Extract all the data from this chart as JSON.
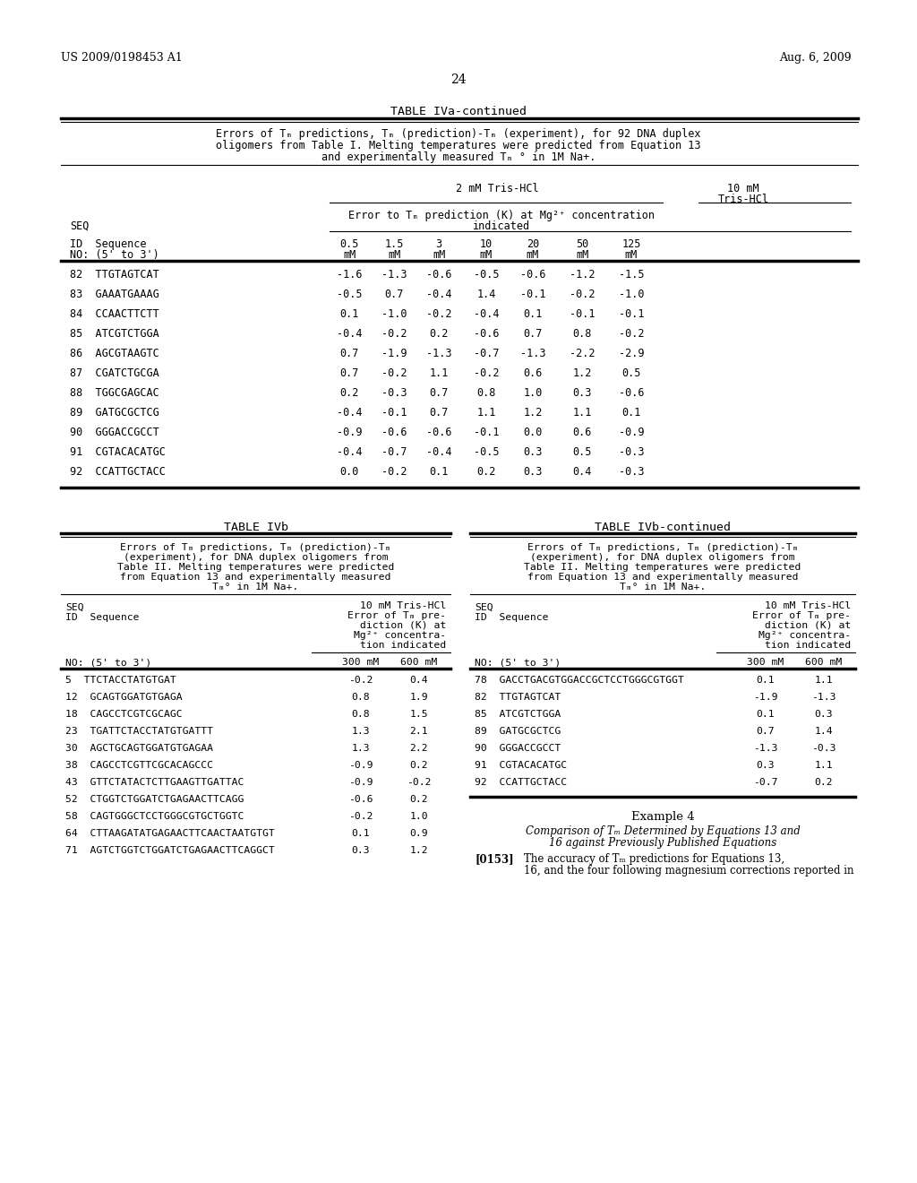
{
  "page_header_left": "US 2009/0198453 A1",
  "page_header_right": "Aug. 6, 2009",
  "page_number": "24",
  "background_color": "#ffffff",
  "table_iva_continued": {
    "title": "TABLE IVa-continued",
    "description_lines": [
      "Errors of Tₘ predictions, Tₘ (prediction)-Tₘ (experiment), for 92 DNA duplex",
      "oligomers from Table I. Melting temperatures were predicted from Equation 13",
      "and experimentally measured Tₘ ° in 1M Na+."
    ],
    "col_header_1": "2 mM Tris-HCl",
    "col_header_2_line1": "10 mM",
    "col_header_2_line2": "Tris-HCl",
    "col_subheader_line1": "Error to Tₘ prediction (K) at Mg²⁺ concentration",
    "col_subheader_line2": "indicated",
    "seq_label": "SEQ",
    "id_label": "ID  Sequence",
    "no_label": "NO: (5' to 3')",
    "col_values_line1": [
      "0.5",
      "1.5",
      "3",
      "10",
      "20",
      "50",
      "125"
    ],
    "col_values_line2": [
      "mM",
      "mM",
      "mM",
      "mM",
      "mM",
      "mM",
      "mM"
    ],
    "rows": [
      [
        "82",
        "TTGTAGTCAT",
        "-1.6",
        "-1.3",
        "-0.6",
        "-0.5",
        "-0.6",
        "-1.2",
        "-1.5"
      ],
      [
        "83",
        "GAAATGAAAG",
        "-0.5",
        "0.7",
        "-0.4",
        "1.4",
        "-0.1",
        "-0.2",
        "-1.0"
      ],
      [
        "84",
        "CCAACTTCTT",
        "0.1",
        "-1.0",
        "-0.2",
        "-0.4",
        "0.1",
        "-0.1",
        "-0.1"
      ],
      [
        "85",
        "ATCGTCTGGA",
        "-0.4",
        "-0.2",
        "0.2",
        "-0.6",
        "0.7",
        "0.8",
        "-0.2"
      ],
      [
        "86",
        "AGCGTAAGTC",
        "0.7",
        "-1.9",
        "-1.3",
        "-0.7",
        "-1.3",
        "-2.2",
        "-2.9"
      ],
      [
        "87",
        "CGATCTGCGA",
        "0.7",
        "-0.2",
        "1.1",
        "-0.2",
        "0.6",
        "1.2",
        "0.5"
      ],
      [
        "88",
        "TGGCGAGCAC",
        "0.2",
        "-0.3",
        "0.7",
        "0.8",
        "1.0",
        "0.3",
        "-0.6"
      ],
      [
        "89",
        "GATGCGCTCG",
        "-0.4",
        "-0.1",
        "0.7",
        "1.1",
        "1.2",
        "1.1",
        "0.1"
      ],
      [
        "90",
        "GGGACCGCCT",
        "-0.9",
        "-0.6",
        "-0.6",
        "-0.1",
        "0.0",
        "0.6",
        "-0.9"
      ],
      [
        "91",
        "CGTACACATGC",
        "-0.4",
        "-0.7",
        "-0.4",
        "-0.5",
        "0.3",
        "0.5",
        "-0.3"
      ],
      [
        "92",
        "CCATTGCTACC",
        "0.0",
        "-0.2",
        "0.1",
        "0.2",
        "0.3",
        "0.4",
        "-0.3"
      ]
    ]
  },
  "table_ivb": {
    "title": "TABLE IVb",
    "description_lines": [
      "Errors of Tₘ predictions, Tₘ (prediction)-Tₘ",
      "(experiment), for DNA duplex oligomers from",
      "Table II. Melting temperatures were predicted",
      "from Equation 13 and experimentally measured",
      "Tₘ° in 1M Na+."
    ],
    "col_header_lines": [
      "10 mM Tris-HCl",
      "Error of Tₘ pre-",
      "diction (K) at",
      "Mg²⁺ concentra-",
      "tion indicated"
    ],
    "seq_label": "SEQ",
    "id_label": "ID  Sequence",
    "no_label": "NO: (5' to 3')",
    "col_values": [
      "300 mM",
      "600 mM"
    ],
    "rows": [
      [
        "5",
        "TTCTACCTATGTGAT",
        "-0.2",
        "0.4"
      ],
      [
        "12",
        "GCAGTGGATGTGAGA",
        "0.8",
        "1.9"
      ],
      [
        "18",
        "CAGCCTCGTCGCAGC",
        "0.8",
        "1.5"
      ],
      [
        "23",
        "TGATTCTACCTATGTGATTT",
        "1.3",
        "2.1"
      ],
      [
        "30",
        "AGCTGCAGTGGATGTGAGAA",
        "1.3",
        "2.2"
      ],
      [
        "38",
        "CAGCCTCGTTCGCACAGCCC",
        "-0.9",
        "0.2"
      ],
      [
        "43",
        "GTTCTATACTCTTGAAGTTGATTAC",
        "-0.9",
        "-0.2"
      ],
      [
        "52",
        "CTGGTCTGGATCTGAGAACTTCAGG",
        "-0.6",
        "0.2"
      ],
      [
        "58",
        "CAGTGGGCTCCTGGGCGTGCTGGTC",
        "-0.2",
        "1.0"
      ],
      [
        "64",
        "CTTAAGATATGAGAACTTCAACTAATGTGT",
        "0.1",
        "0.9"
      ],
      [
        "71",
        "AGTCTGGTCTGGATCTGAGAACTTCAGGCT",
        "0.3",
        "1.2"
      ]
    ]
  },
  "table_ivb_continued": {
    "title": "TABLE IVb-continued",
    "description_lines": [
      "Errors of Tₘ predictions, Tₘ (prediction)-Tₘ",
      "(experiment), for DNA duplex oligomers from",
      "Table II. Melting temperatures were predicted",
      "from Equation 13 and experimentally measured",
      "Tₘ° in 1M Na+."
    ],
    "col_header_lines": [
      "10 mM Tris-HCl",
      "Error of Tₘ pre-",
      "diction (K) at",
      "Mg²⁺ concentra-",
      "tion indicated"
    ],
    "seq_label": "SEQ",
    "id_label": "ID  Sequence",
    "no_label": "NO: (5' to 3')",
    "col_values": [
      "300 mM",
      "600 mM"
    ],
    "rows": [
      [
        "78",
        "GACCTGACGTGGACCGCTCCTGGGCGTGGT",
        "0.1",
        "1.1"
      ],
      [
        "82",
        "TTGTAGTCAT",
        "-1.9",
        "-1.3"
      ],
      [
        "85",
        "ATCGTCTGGA",
        "0.1",
        "0.3"
      ],
      [
        "89",
        "GATGCGCTCG",
        "0.7",
        "1.4"
      ],
      [
        "90",
        "GGGACCGCCT",
        "-1.3",
        "-0.3"
      ],
      [
        "91",
        "CGTACACATGC",
        "0.3",
        "1.1"
      ],
      [
        "92",
        "CCATTGCTACC",
        "-0.7",
        "0.2"
      ]
    ]
  },
  "example4": {
    "title": "Example 4",
    "subtitle_lines": [
      "Comparison of Tₘ Determined by Equations 13 and",
      "16 against Previously Published Equations"
    ],
    "paragraph_label": "[0153]",
    "paragraph_lines": [
      "The accuracy of Tₘ predictions for Equations 13,",
      "16, and the four following magnesium corrections reported in"
    ]
  }
}
